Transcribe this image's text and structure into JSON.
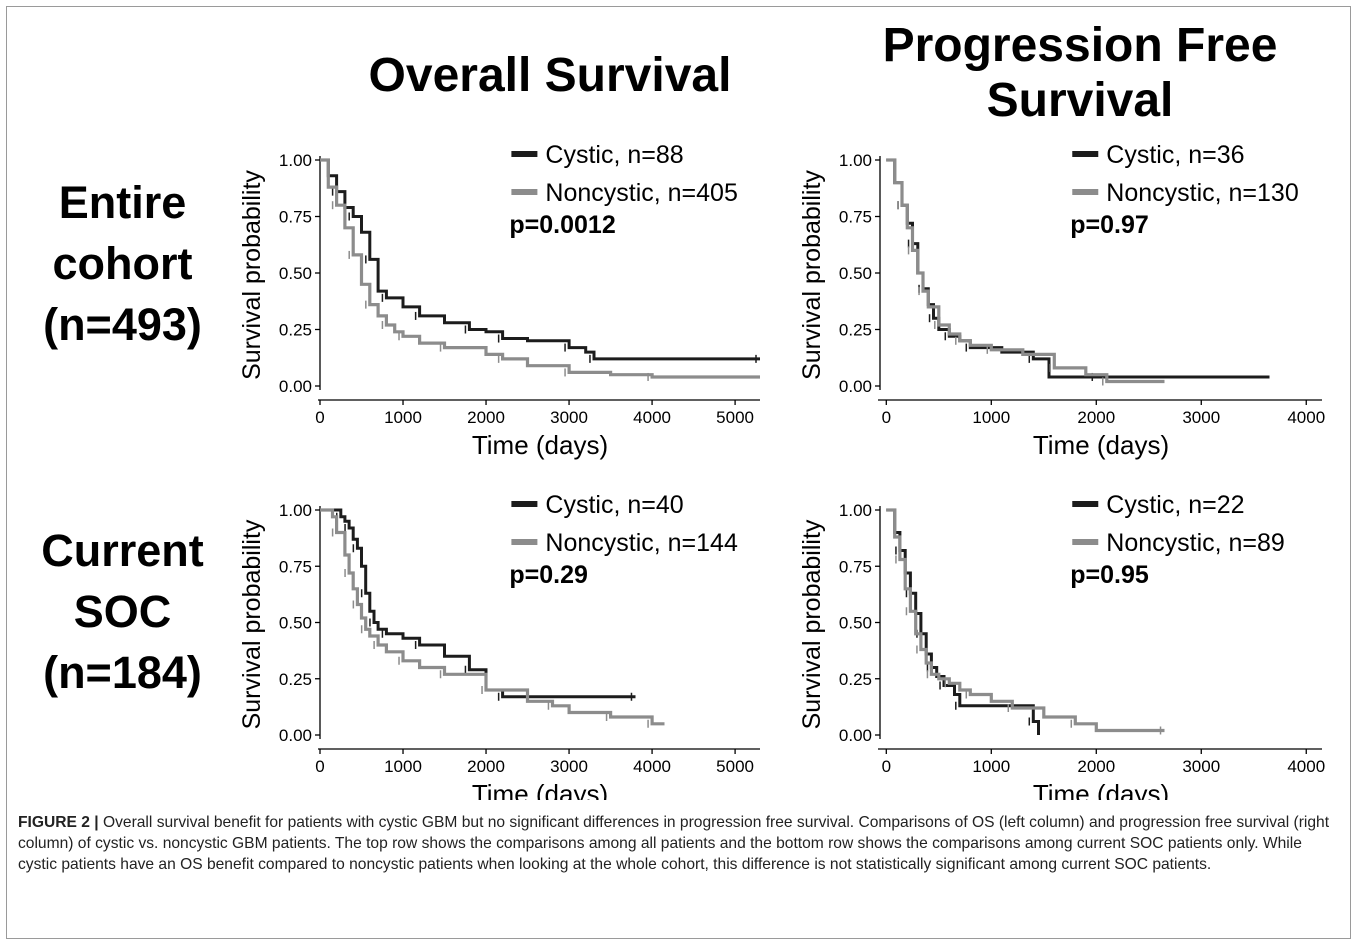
{
  "column_titles": {
    "os": "Overall Survival",
    "pfs_line1": "Progression Free",
    "pfs_line2": "Survival"
  },
  "row_labels": {
    "entire": [
      "Entire",
      "cohort",
      "(n=493)"
    ],
    "soc": [
      "Current",
      "SOC",
      "(n=184)"
    ]
  },
  "caption": {
    "label": "FIGURE 2 |",
    "text": "Overall survival benefit for patients with cystic GBM but no significant differences in progression free survival. Comparisons of OS (left column) and progression free survival (right column) of cystic vs. noncystic GBM patients. The top row shows the comparisons among all patients and the bottom row shows the comparisons among current SOC patients only. While cystic patients have an OS benefit compared to noncystic patients when looking at the whole cohort, this difference is not statistically significant among current SOC patients."
  },
  "colors": {
    "cystic": "#1c1c1c",
    "noncystic": "#8c8c8c",
    "axis": "#000000"
  },
  "chart_data": [
    {
      "type": "line",
      "id": "os-entire",
      "xlabel": "Time (days)",
      "ylabel": "Survival probability",
      "xlim": [
        0,
        5300
      ],
      "ylim": [
        0,
        1
      ],
      "xticks": [
        0,
        1000,
        2000,
        3000,
        4000,
        5000
      ],
      "yticks": [
        0.0,
        0.25,
        0.5,
        0.75,
        1.0
      ],
      "ytick_labels": [
        "0.00",
        "0.25",
        "0.50",
        "0.75",
        "1.00"
      ],
      "pvalue": "p=0.0012",
      "legend_position": "top-right",
      "series": [
        {
          "name": "Cystic, n=88",
          "key": "cystic",
          "x": [
            0,
            100,
            200,
            300,
            400,
            500,
            600,
            700,
            800,
            1000,
            1200,
            1500,
            1800,
            2000,
            2200,
            2500,
            3000,
            3200,
            3300,
            4000,
            5300
          ],
          "y": [
            1.0,
            0.93,
            0.86,
            0.79,
            0.75,
            0.68,
            0.56,
            0.42,
            0.39,
            0.35,
            0.31,
            0.28,
            0.25,
            0.24,
            0.21,
            0.2,
            0.17,
            0.15,
            0.12,
            0.12,
            0.12
          ]
        },
        {
          "name": "Noncystic, n=405",
          "key": "noncystic",
          "x": [
            0,
            100,
            200,
            300,
            400,
            500,
            600,
            700,
            800,
            900,
            1000,
            1200,
            1500,
            2000,
            2200,
            2500,
            3000,
            3500,
            4000,
            5300
          ],
          "y": [
            1.0,
            0.88,
            0.8,
            0.7,
            0.58,
            0.45,
            0.36,
            0.31,
            0.27,
            0.24,
            0.22,
            0.19,
            0.17,
            0.14,
            0.12,
            0.09,
            0.06,
            0.05,
            0.04,
            0.04
          ]
        }
      ]
    },
    {
      "type": "line",
      "id": "pfs-entire",
      "xlabel": "Time (days)",
      "ylabel": "Survival probability",
      "xlim": [
        -60,
        4150
      ],
      "ylim": [
        0,
        1
      ],
      "xticks": [
        0,
        1000,
        2000,
        3000,
        4000
      ],
      "yticks": [
        0.0,
        0.25,
        0.5,
        0.75,
        1.0
      ],
      "ytick_labels": [
        "0.00",
        "0.25",
        "0.50",
        "0.75",
        "1.00"
      ],
      "pvalue": "p=0.97",
      "legend_position": "top-right",
      "series": [
        {
          "name": "Cystic, n=36",
          "key": "cystic",
          "x": [
            0,
            80,
            150,
            200,
            250,
            300,
            350,
            400,
            450,
            500,
            600,
            700,
            800,
            1100,
            1400,
            1550,
            2000,
            3650
          ],
          "y": [
            1.0,
            0.9,
            0.8,
            0.72,
            0.63,
            0.5,
            0.43,
            0.36,
            0.3,
            0.25,
            0.22,
            0.2,
            0.17,
            0.15,
            0.12,
            0.04,
            0.04,
            0.04
          ]
        },
        {
          "name": "Noncystic, n=130",
          "key": "noncystic",
          "x": [
            0,
            80,
            150,
            200,
            250,
            300,
            350,
            400,
            500,
            600,
            700,
            800,
            1000,
            1300,
            1600,
            1900,
            2100,
            2650
          ],
          "y": [
            1.0,
            0.9,
            0.8,
            0.7,
            0.6,
            0.5,
            0.42,
            0.35,
            0.27,
            0.23,
            0.2,
            0.18,
            0.16,
            0.14,
            0.08,
            0.05,
            0.02,
            0.02
          ]
        }
      ]
    },
    {
      "type": "line",
      "id": "os-soc",
      "xlabel": "Time (days)",
      "ylabel": "Survival probability",
      "xlim": [
        0,
        5300
      ],
      "ylim": [
        0,
        1
      ],
      "xticks": [
        0,
        1000,
        2000,
        3000,
        4000,
        5000
      ],
      "yticks": [
        0.0,
        0.25,
        0.5,
        0.75,
        1.0
      ],
      "ytick_labels": [
        "0.00",
        "0.25",
        "0.50",
        "0.75",
        "1.00"
      ],
      "pvalue": "p=0.29",
      "legend_position": "top-right",
      "series": [
        {
          "name": "Cystic, n=40",
          "key": "cystic",
          "x": [
            0,
            150,
            250,
            300,
            350,
            400,
            450,
            500,
            550,
            600,
            650,
            700,
            800,
            1000,
            1200,
            1500,
            1800,
            2000,
            2200,
            3000,
            3800
          ],
          "y": [
            1.0,
            1.0,
            0.97,
            0.95,
            0.92,
            0.87,
            0.83,
            0.75,
            0.63,
            0.55,
            0.5,
            0.47,
            0.45,
            0.43,
            0.4,
            0.35,
            0.29,
            0.2,
            0.17,
            0.17,
            0.17
          ]
        },
        {
          "name": "Noncystic, n=144",
          "key": "noncystic",
          "x": [
            0,
            150,
            200,
            300,
            350,
            400,
            450,
            500,
            550,
            600,
            700,
            800,
            1000,
            1200,
            1500,
            1800,
            2000,
            2500,
            2800,
            3000,
            3500,
            3800,
            4000,
            4150
          ],
          "y": [
            1.0,
            0.97,
            0.9,
            0.8,
            0.72,
            0.65,
            0.58,
            0.52,
            0.47,
            0.44,
            0.4,
            0.37,
            0.33,
            0.3,
            0.27,
            0.27,
            0.2,
            0.15,
            0.13,
            0.1,
            0.08,
            0.08,
            0.05,
            0.05
          ]
        }
      ]
    },
    {
      "type": "line",
      "id": "pfs-soc",
      "xlabel": "Time (days)",
      "ylabel": "Survival probability",
      "xlim": [
        -60,
        4150
      ],
      "ylim": [
        0,
        1
      ],
      "xticks": [
        0,
        1000,
        2000,
        3000,
        4000
      ],
      "yticks": [
        0.0,
        0.25,
        0.5,
        0.75,
        1.0
      ],
      "ytick_labels": [
        "0.00",
        "0.25",
        "0.50",
        "0.75",
        "1.00"
      ],
      "pvalue": "p=0.95",
      "legend_position": "top-right",
      "series": [
        {
          "name": "Cystic, n=22",
          "key": "cystic",
          "x": [
            0,
            80,
            130,
            180,
            230,
            280,
            330,
            380,
            430,
            480,
            550,
            650,
            700,
            1100,
            1400,
            1450
          ],
          "y": [
            1.0,
            0.9,
            0.82,
            0.72,
            0.63,
            0.54,
            0.45,
            0.36,
            0.3,
            0.26,
            0.22,
            0.18,
            0.13,
            0.13,
            0.06,
            0.0
          ]
        },
        {
          "name": "Noncystic, n=89",
          "key": "noncystic",
          "x": [
            0,
            80,
            130,
            180,
            230,
            280,
            330,
            380,
            430,
            500,
            600,
            700,
            800,
            1000,
            1200,
            1500,
            1800,
            2000,
            2650
          ],
          "y": [
            1.0,
            0.88,
            0.78,
            0.65,
            0.55,
            0.45,
            0.38,
            0.32,
            0.27,
            0.25,
            0.23,
            0.2,
            0.18,
            0.15,
            0.12,
            0.08,
            0.05,
            0.02,
            0.02
          ]
        }
      ]
    }
  ]
}
